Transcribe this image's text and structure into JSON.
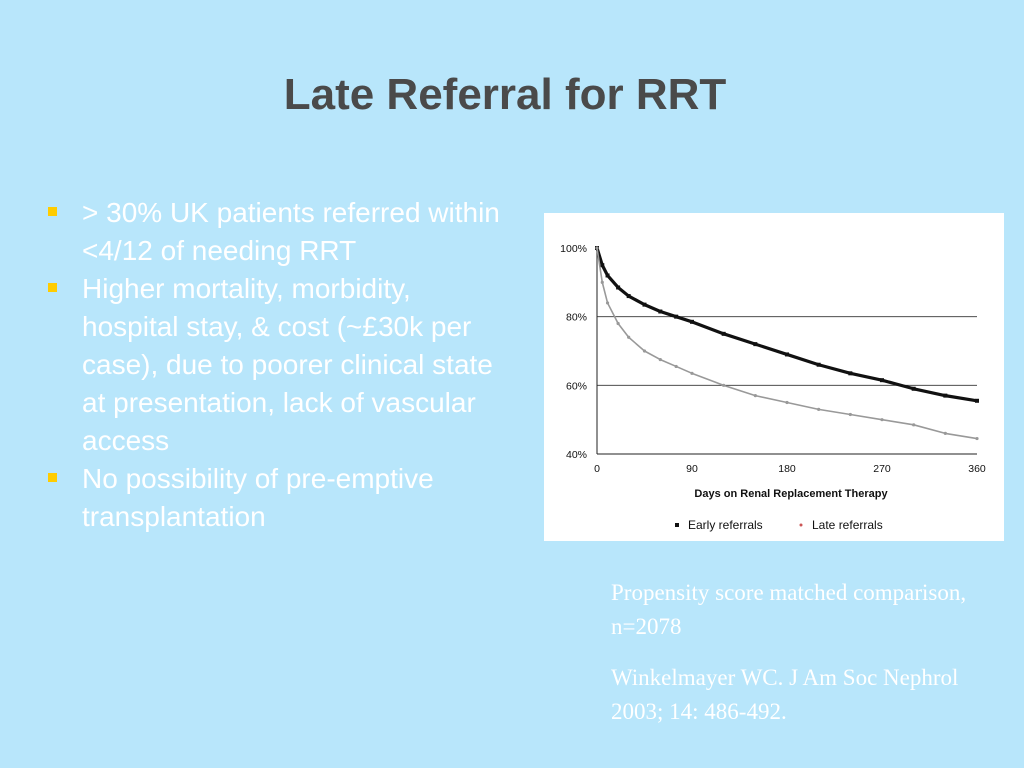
{
  "slide": {
    "title": "Late Referral for RRT",
    "bullets": [
      "> 30% UK patients referred within <4/12 of needing RRT",
      "Higher mortality, morbidity, hospital stay, & cost (~£30k per case), due to poorer clinical state at presentation, lack of vascular access",
      "No possibility of pre-emptive transplantation"
    ],
    "caption": "Propensity score matched comparison, n=2078",
    "citation": "Winkelmayer WC. J Am Soc Nephrol 2003; 14: 486-492.",
    "bullet_color": "#ffcc00",
    "text_color": "#ffffff",
    "background_color": "#b8e6fb",
    "title_color": "#4a4a4a"
  },
  "chart_data": {
    "type": "line",
    "title": "",
    "xlabel": "Days on Renal Replacement Therapy",
    "ylabel": "",
    "xlim": [
      0,
      360
    ],
    "ylim": [
      40,
      100
    ],
    "x_ticks": [
      0,
      90,
      180,
      270,
      360
    ],
    "x_tick_labels": [
      "0",
      "90",
      "180",
      "270",
      "360"
    ],
    "y_ticks": [
      40,
      60,
      80,
      100
    ],
    "y_tick_labels": [
      "40%",
      "60%",
      "80%",
      "100%"
    ],
    "gridlines_y": [
      60,
      80
    ],
    "legend_position": "bottom",
    "series": [
      {
        "name": "Early referrals",
        "color": "#111111",
        "marker": "square",
        "x": [
          0,
          5,
          10,
          20,
          30,
          45,
          60,
          75,
          90,
          120,
          150,
          180,
          210,
          240,
          270,
          300,
          330,
          360
        ],
        "y": [
          100,
          95,
          92,
          88.5,
          86,
          83.5,
          81.5,
          80,
          78.5,
          75,
          72,
          69,
          66,
          63.5,
          61.5,
          59,
          57,
          55.5
        ]
      },
      {
        "name": "Late referrals",
        "color": "#999999",
        "marker": "dot",
        "x": [
          0,
          5,
          10,
          20,
          30,
          45,
          60,
          75,
          90,
          120,
          150,
          180,
          210,
          240,
          270,
          300,
          330,
          360
        ],
        "y": [
          100,
          90,
          84,
          78,
          74,
          70,
          67.5,
          65.5,
          63.5,
          60,
          57,
          55,
          53,
          51.5,
          50,
          48.5,
          46,
          44.5
        ]
      }
    ]
  }
}
